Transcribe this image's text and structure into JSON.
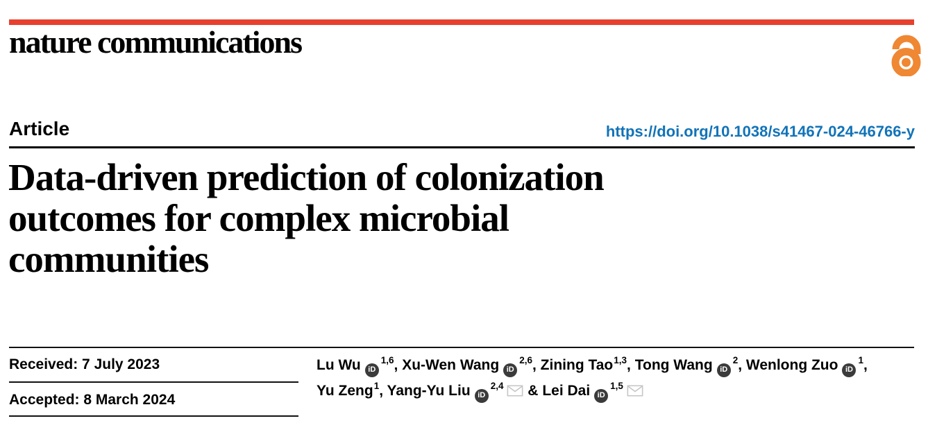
{
  "brand": {
    "journal_name": "nature communications",
    "open_access_icon": "open-access-lock-icon"
  },
  "colors": {
    "masthead_red": "#e8402f",
    "open_access_orange": "#ef8733",
    "doi_blue": "#1173b8",
    "orcid_icon_bg": "#3b3b3b",
    "envelope_gray": "#c6c6c6",
    "text_black": "#000000"
  },
  "header": {
    "article_label": "Article",
    "doi_link": "https://doi.org/10.1038/s41467-024-46766-y"
  },
  "title": {
    "lines": [
      "Data-driven prediction of colonization",
      "outcomes for complex microbial",
      "communities"
    ]
  },
  "dates": {
    "received": "Received: 7 July 2023",
    "accepted": "Accepted: 8 March 2024"
  },
  "authors": {
    "orcid_icon_text": "iD",
    "lines": [
      [
        {
          "name": "Lu Wu",
          "orcid": true,
          "sup": "1,6",
          "after": ", "
        },
        {
          "name": "Xu-Wen Wang",
          "orcid": true,
          "sup": "2,6",
          "after": ", "
        },
        {
          "name": "Zining Tao",
          "orcid": false,
          "sup": "1,3",
          "after": ", "
        },
        {
          "name": "Tong Wang",
          "orcid": true,
          "sup": "2",
          "after": ", "
        },
        {
          "name": "Wenlong Zuo",
          "orcid": true,
          "sup": "1",
          "after": ","
        }
      ],
      [
        {
          "name": "Yu Zeng",
          "orcid": false,
          "sup": "1",
          "after": ", "
        },
        {
          "name": "Yang-Yu Liu",
          "orcid": true,
          "sup": "2,4",
          "email": true,
          "after": " & "
        },
        {
          "name": "Lei Dai",
          "orcid": true,
          "sup": "1,5",
          "email": true,
          "after": ""
        }
      ]
    ]
  }
}
